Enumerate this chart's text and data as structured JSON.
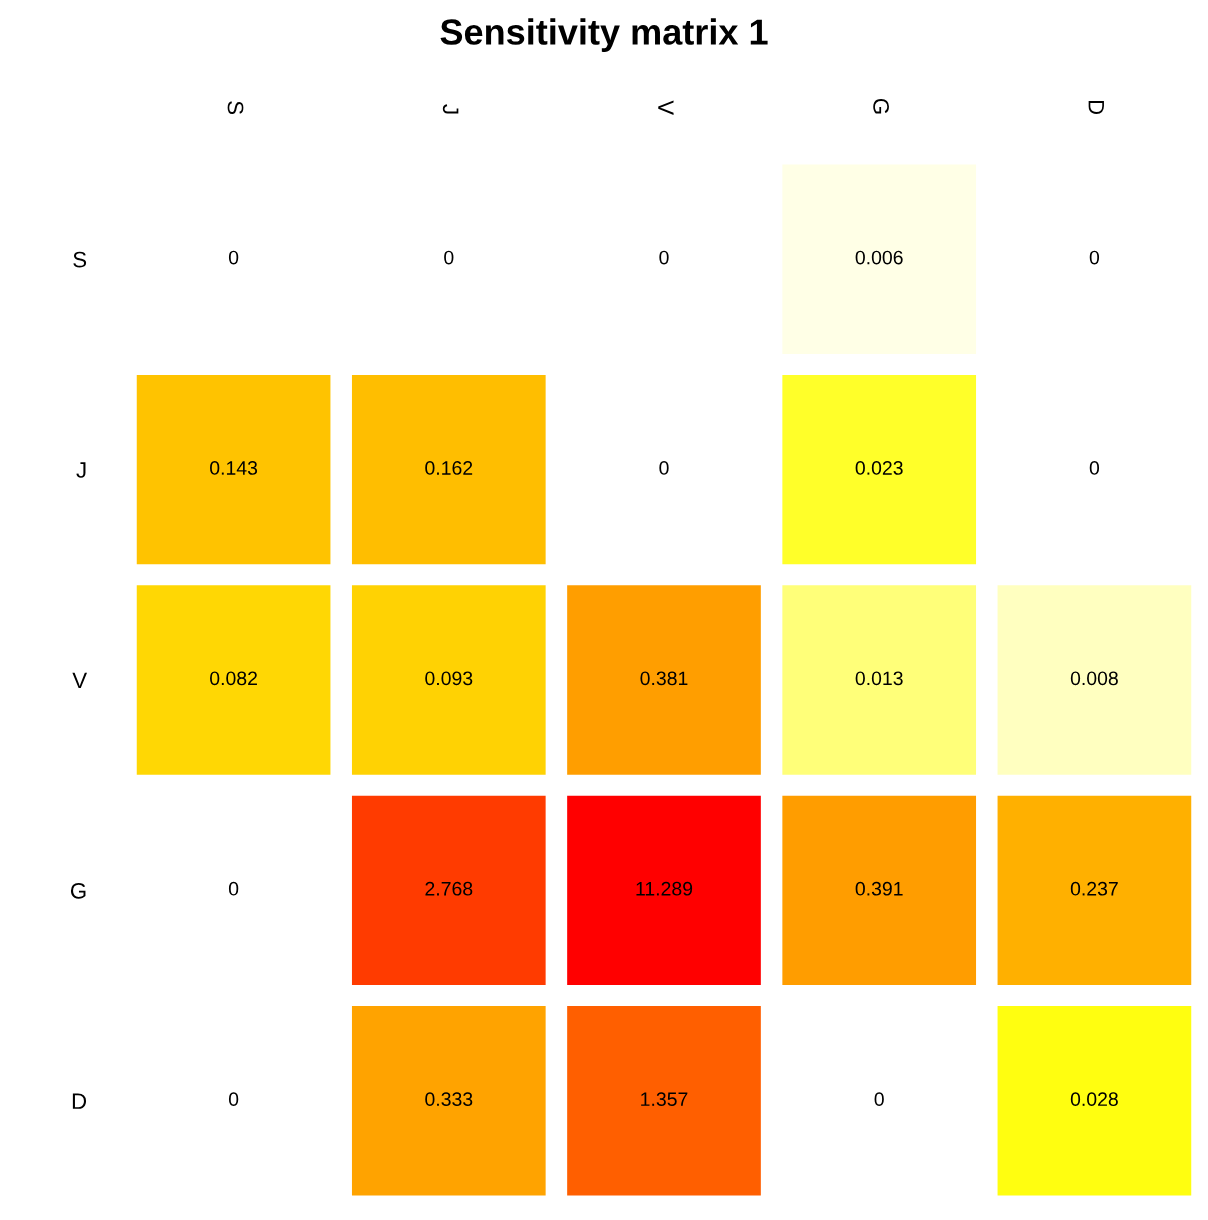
{
  "chart_data": {
    "type": "heatmap",
    "title": "Sensitivity matrix 1",
    "categories": [
      "S",
      "J",
      "V",
      "G",
      "D"
    ],
    "y_categories": [
      "S",
      "J",
      "V",
      "G",
      "D"
    ],
    "cells": [
      [
        0,
        0,
        0,
        0.006,
        0
      ],
      [
        0.143,
        0.162,
        0,
        0.023,
        0
      ],
      [
        0.082,
        0.093,
        0.381,
        0.013,
        0.008
      ],
      [
        0,
        2.768,
        11.289,
        0.391,
        0.237
      ],
      [
        0,
        0.333,
        1.357,
        0,
        0.028
      ]
    ],
    "data_labels": true
  }
}
